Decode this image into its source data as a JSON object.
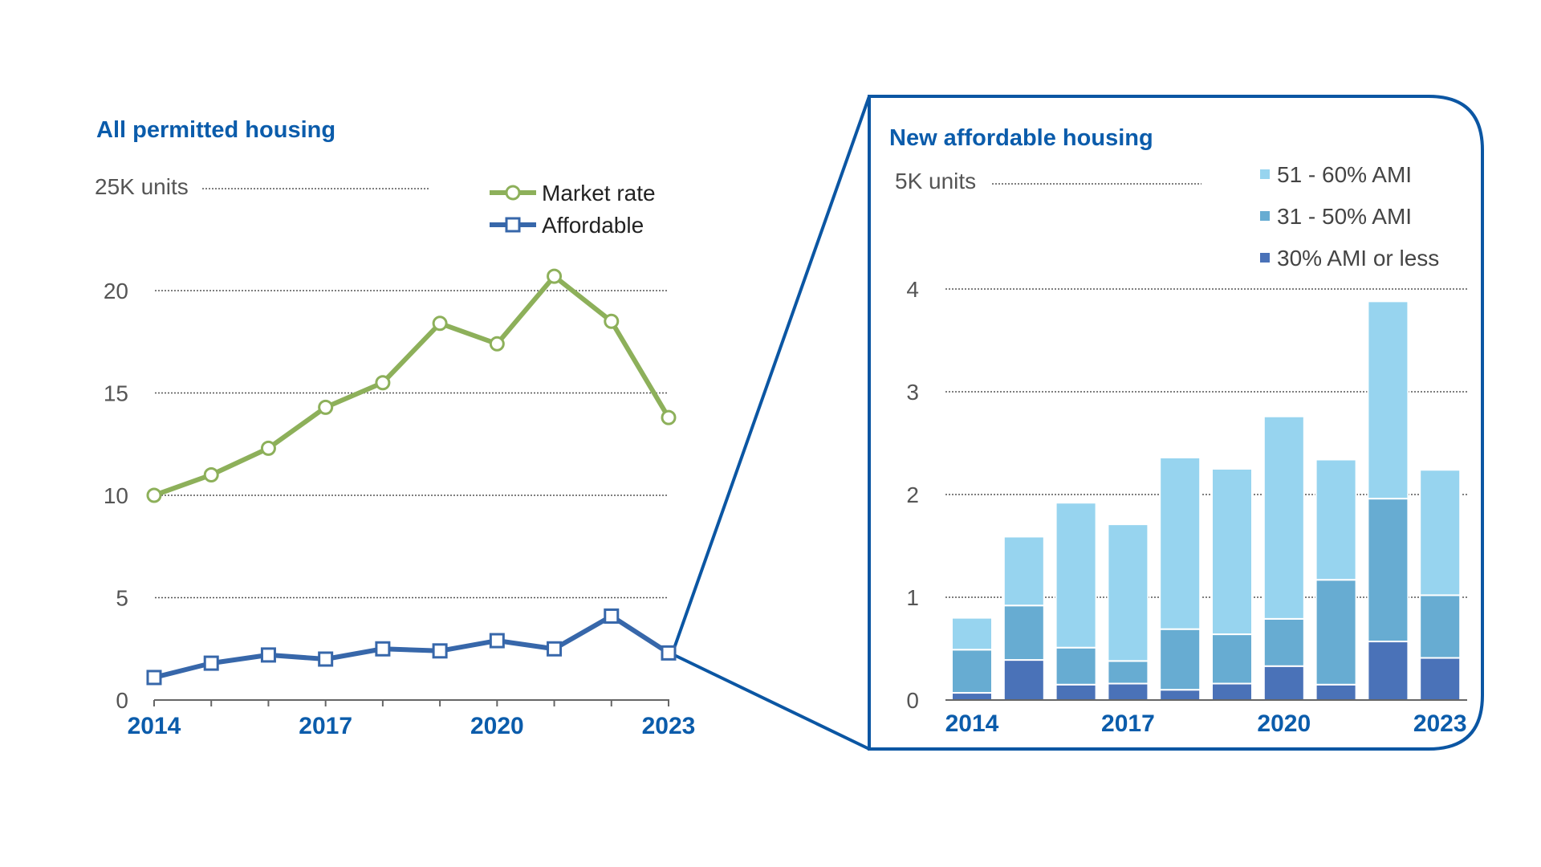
{
  "chart_data": [
    {
      "type": "line",
      "title": "All permitted housing",
      "unit_label": "25K units",
      "x": [
        2014,
        2015,
        2016,
        2017,
        2018,
        2019,
        2020,
        2021,
        2022,
        2023
      ],
      "xtick_labels": [
        "2014",
        "2017",
        "2020",
        "2023"
      ],
      "ytick_labels": [
        "0",
        "5",
        "10",
        "15",
        "20"
      ],
      "ylim": [
        0,
        25
      ],
      "grid": true,
      "legend_position": "top-right",
      "series": [
        {
          "name": "Market rate",
          "color": "#8db05a",
          "marker": "circle",
          "values": [
            10.0,
            11.0,
            12.3,
            14.3,
            15.5,
            18.4,
            17.4,
            20.7,
            18.5,
            13.8
          ]
        },
        {
          "name": "Affordable",
          "color": "#3767aa",
          "marker": "square",
          "values": [
            1.1,
            1.8,
            2.2,
            2.0,
            2.5,
            2.4,
            2.9,
            2.5,
            4.1,
            2.3
          ]
        }
      ]
    },
    {
      "type": "bar",
      "stacked": true,
      "title": "New affordable housing",
      "unit_label": "5K units",
      "categories": [
        "2014",
        "2015",
        "2016",
        "2017",
        "2018",
        "2019",
        "2020",
        "2021",
        "2022",
        "2023"
      ],
      "xtick_labels": [
        "2014",
        "2017",
        "2020",
        "2023"
      ],
      "ytick_labels": [
        "0",
        "1",
        "2",
        "3",
        "4"
      ],
      "ylim": [
        0,
        5
      ],
      "grid": true,
      "legend_position": "top-right",
      "series": [
        {
          "name": "30% AMI or less",
          "color": "#4a72b8",
          "values": [
            0.07,
            0.39,
            0.15,
            0.16,
            0.1,
            0.16,
            0.33,
            0.15,
            0.57,
            0.41
          ]
        },
        {
          "name": "31 - 50% AMI",
          "color": "#67acd2",
          "values": [
            0.42,
            0.53,
            0.36,
            0.22,
            0.59,
            0.48,
            0.46,
            1.02,
            1.39,
            0.61
          ]
        },
        {
          "name": "51 - 60% AMI",
          "color": "#97d4ef",
          "values": [
            0.31,
            0.67,
            1.41,
            1.33,
            1.67,
            1.61,
            1.97,
            1.17,
            1.92,
            1.22
          ]
        }
      ]
    }
  ]
}
